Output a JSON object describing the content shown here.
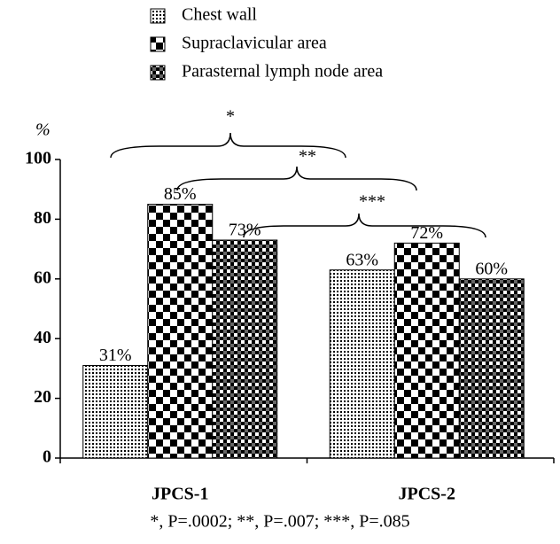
{
  "chart_data": {
    "type": "bar",
    "y_label": "%",
    "categories": [
      "JPCS-1",
      "JPCS-2"
    ],
    "series": [
      {
        "name": "Chest wall",
        "values": [
          31,
          63
        ],
        "value_labels": [
          "31%",
          "63%"
        ]
      },
      {
        "name": "Supraclavicular area",
        "values": [
          85,
          72
        ],
        "value_labels": [
          "85%",
          "72%"
        ]
      },
      {
        "name": "Parasternal lymph node area",
        "values": [
          73,
          60
        ],
        "value_labels": [
          "73%",
          "60%"
        ]
      }
    ],
    "ylim": [
      0,
      100
    ],
    "yticks": [
      0,
      20,
      40,
      60,
      80,
      100
    ],
    "annotations": [
      "*",
      "**",
      "***"
    ],
    "footnote": "*, P=.0002; **, P=.007; ***, P=.085"
  }
}
